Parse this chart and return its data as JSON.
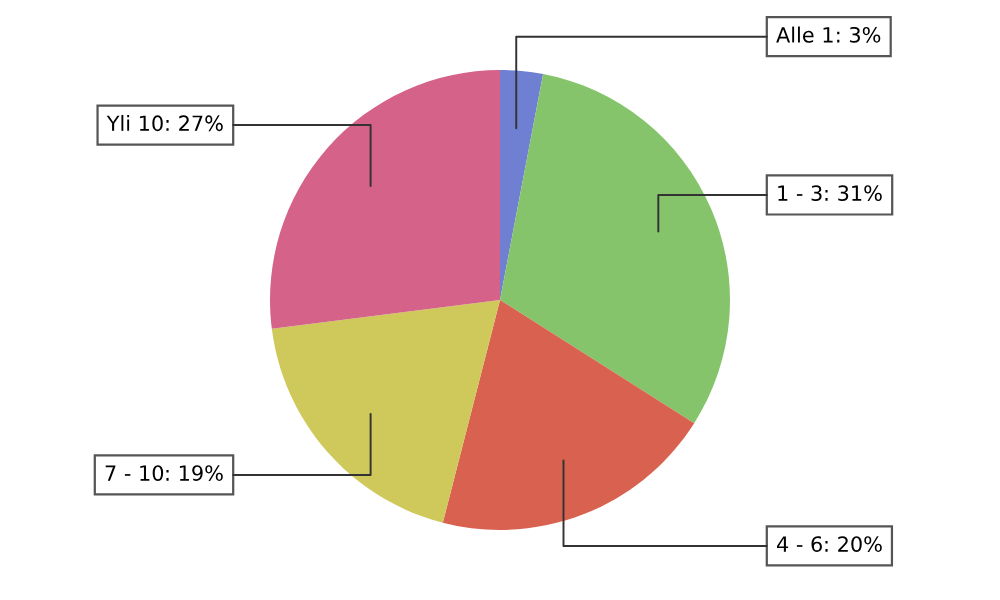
{
  "chart_data": {
    "type": "pie",
    "categories": [
      "Alle 1",
      "1 - 3",
      "4 - 6",
      "7 - 10",
      "Yli 10"
    ],
    "values": [
      3,
      31,
      20,
      19,
      27
    ],
    "colors": [
      "#6f80d2",
      "#85c46b",
      "#d9614f",
      "#cfc95b",
      "#d46289"
    ],
    "value_labels": [
      ": 3%",
      ": 31%",
      ": 20%",
      ": 19%",
      ": 27%"
    ],
    "legend": false
  }
}
